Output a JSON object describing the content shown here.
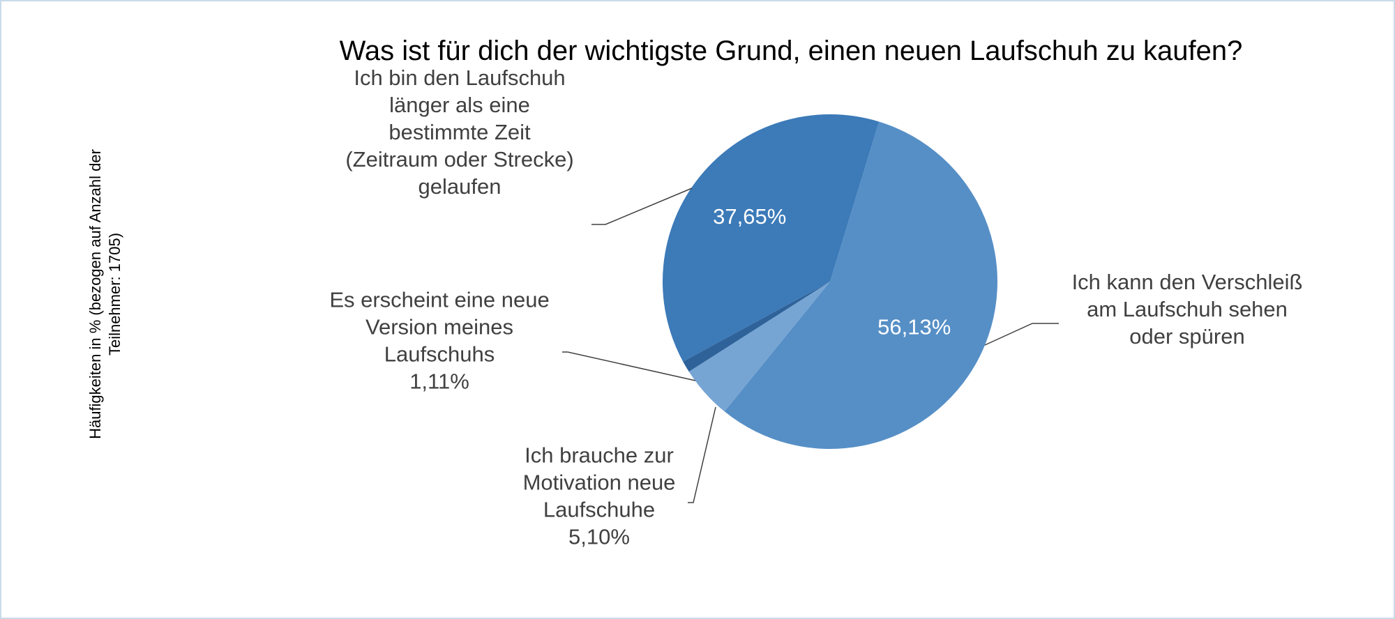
{
  "chart_data": {
    "type": "pie",
    "title": "Was ist für dich der wichtigste Grund, einen neuen Laufschuh zu kaufen?",
    "ylabel_lines": [
      "Häufigkeiten in % (bezogen auf Anzahl der",
      "Teilnehmer: 1705)"
    ],
    "legend": "none",
    "slices": [
      {
        "label_lines": [
          "Ich kann den Verschleiß",
          "am Laufschuh sehen",
          "oder spüren"
        ],
        "value": 56.13,
        "value_label": "56,13%",
        "color": "#568fc6"
      },
      {
        "label_lines": [
          "Ich brauche zur",
          "Motivation neue",
          "Laufschuhe",
          "5,10%"
        ],
        "value": 5.1,
        "value_label": "5,10%",
        "color": "#76a5d4"
      },
      {
        "label_lines": [
          "Es erscheint eine neue",
          "Version meines",
          "Laufschuhs",
          "1,11%"
        ],
        "value": 1.11,
        "value_label": "1,11%",
        "color": "#2e6299"
      },
      {
        "label_lines": [
          "Ich bin den Laufschuh",
          "länger als eine",
          "bestimmte Zeit",
          "(Zeitraum oder Strecke)",
          "gelaufen"
        ],
        "value": 37.65,
        "value_label": "37,65%",
        "color": "#3c7ab8"
      }
    ]
  }
}
